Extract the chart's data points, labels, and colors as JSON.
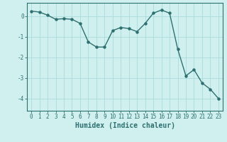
{
  "x": [
    0,
    1,
    2,
    3,
    4,
    5,
    6,
    7,
    8,
    9,
    10,
    11,
    12,
    13,
    14,
    15,
    16,
    17,
    18,
    19,
    20,
    21,
    22,
    23
  ],
  "y": [
    0.25,
    0.2,
    0.05,
    -0.15,
    -0.12,
    -0.15,
    -0.35,
    -1.25,
    -1.5,
    -1.5,
    -0.7,
    -0.55,
    -0.6,
    -0.75,
    -0.35,
    0.15,
    0.3,
    0.15,
    -1.6,
    -2.9,
    -2.6,
    -3.25,
    -3.55,
    -4.0
  ],
  "line_color": "#2e7070",
  "marker": "o",
  "markersize": 2.2,
  "linewidth": 1.0,
  "xlabel": "Humidex (Indice chaleur)",
  "xlabel_fontsize": 7,
  "xlabel_color": "#2e7070",
  "ylim": [
    -4.6,
    0.65
  ],
  "xlim": [
    -0.5,
    23.5
  ],
  "yticks": [
    -4,
    -3,
    -2,
    -1,
    0
  ],
  "xticks": [
    0,
    1,
    2,
    3,
    4,
    5,
    6,
    7,
    8,
    9,
    10,
    11,
    12,
    13,
    14,
    15,
    16,
    17,
    18,
    19,
    20,
    21,
    22,
    23
  ],
  "background_color": "#cff0ee",
  "grid_color": "#aadada",
  "tick_color": "#2e7070",
  "tick_fontsize": 5.5,
  "spine_color": "#2e7070"
}
